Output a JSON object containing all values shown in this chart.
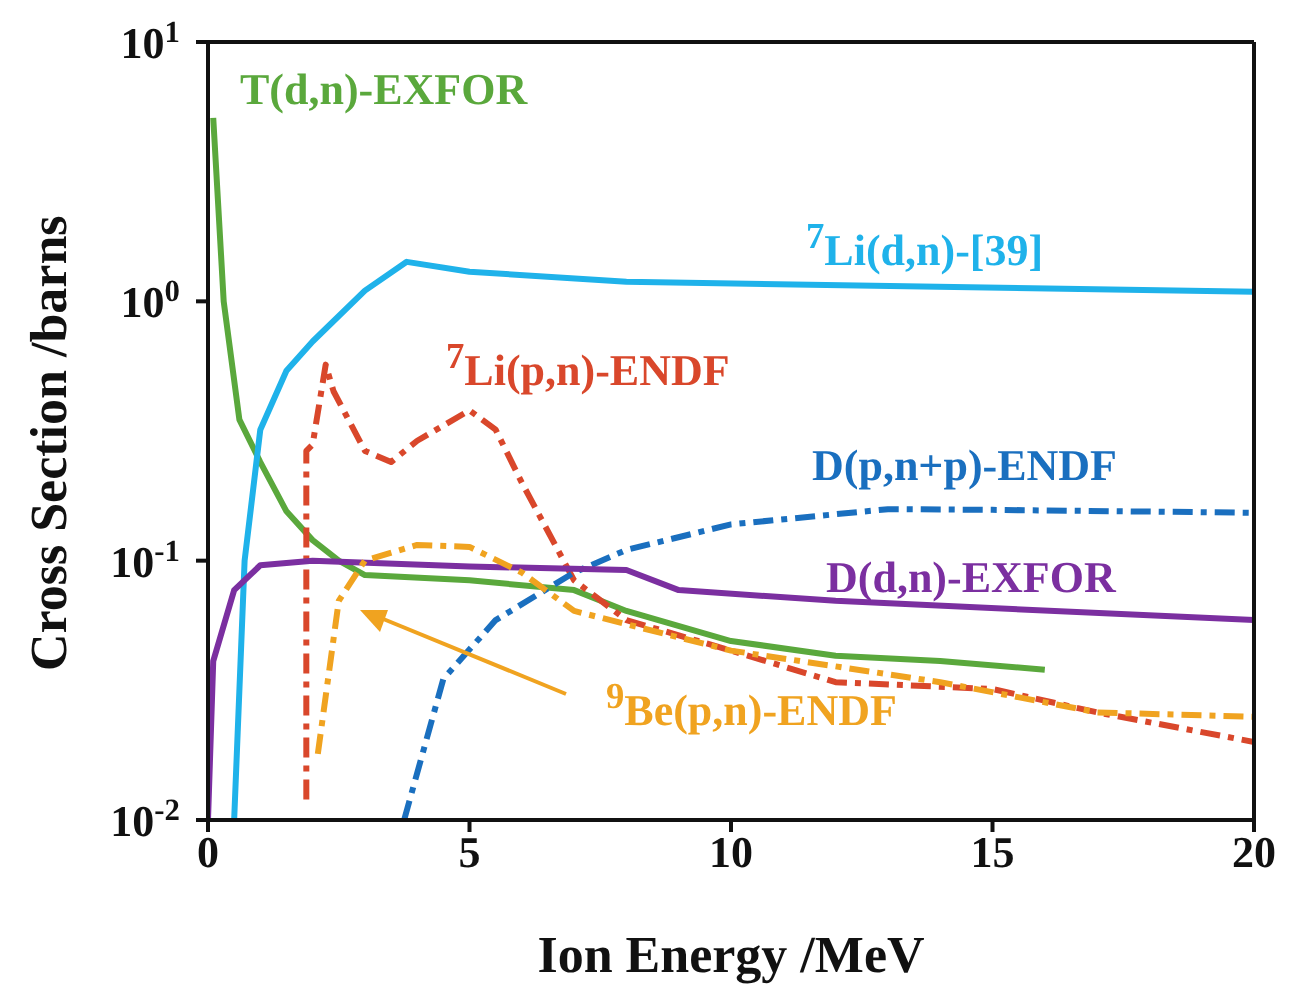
{
  "chart_data": {
    "type": "line",
    "xlabel": "Ion Energy /MeV",
    "ylabel": "Cross Section /barns",
    "log": "y",
    "xlim": [
      0,
      20
    ],
    "xticks": [
      0,
      5,
      10,
      15,
      20
    ],
    "ylim": [
      0.01,
      10
    ],
    "yticks": [
      {
        "value": 0.01,
        "label": "10$^{-2}$"
      },
      {
        "value": 0.1,
        "label": "10$^{-1}$"
      },
      {
        "value": 1,
        "label": "10$^{0}$"
      },
      {
        "value": 10,
        "label": "10$^{1}$"
      }
    ],
    "legend": false,
    "series": [
      {
        "name": "T(d,n)-EXFOR",
        "color": "#5aa83c",
        "line_style": "solid",
        "x": [
          0.1,
          0.3,
          0.6,
          1,
          1.5,
          2,
          2.5,
          3,
          5,
          7,
          8,
          10,
          12,
          14,
          16
        ],
        "values": [
          5.1,
          1.0,
          0.35,
          0.24,
          0.155,
          0.12,
          0.1,
          0.088,
          0.084,
          0.077,
          0.064,
          0.049,
          0.043,
          0.041,
          0.038
        ]
      },
      {
        "name": "$^{7}$Li(d,n)-[39]",
        "color": "#1fb2ea",
        "line_style": "solid",
        "x": [
          0.5,
          0.7,
          1,
          1.5,
          2,
          3,
          3.8,
          5,
          8,
          20
        ],
        "values": [
          0.01,
          0.1,
          0.32,
          0.54,
          0.7,
          1.1,
          1.42,
          1.3,
          1.19,
          1.09
        ]
      },
      {
        "name": "$^{7}$Li(p,n)-ENDF",
        "color": "#d9472b",
        "line_style": "dashed",
        "x": [
          1.88,
          1.88,
          2,
          2.25,
          2.4,
          3,
          3.5,
          4,
          5,
          5.5,
          6,
          7,
          8,
          10,
          12,
          15,
          17,
          20
        ],
        "values": [
          0.012,
          0.265,
          0.28,
          0.57,
          0.45,
          0.265,
          0.24,
          0.29,
          0.38,
          0.32,
          0.2,
          0.084,
          0.059,
          0.045,
          0.034,
          0.032,
          0.026,
          0.02
        ]
      },
      {
        "name": "D(p,n+p)-ENDF",
        "color": "#1a6fbf",
        "line_style": "dashed",
        "x": [
          3.75,
          4.5,
          5.5,
          7,
          8,
          10,
          13,
          15,
          20
        ],
        "values": [
          0.01,
          0.035,
          0.059,
          0.09,
          0.11,
          0.138,
          0.158,
          0.157,
          0.153
        ]
      },
      {
        "name": "D(d,n)-EXFOR",
        "color": "#7b2fa0",
        "line_style": "solid",
        "x": [
          0,
          0.1,
          0.5,
          1,
          2,
          5,
          8,
          9,
          12,
          20
        ],
        "values": [
          0.01,
          0.041,
          0.077,
          0.096,
          0.1,
          0.095,
          0.092,
          0.077,
          0.07,
          0.059
        ]
      },
      {
        "name": "$^{9}$Be(p,n)-ENDF",
        "color": "#f0a320",
        "line_style": "dashed",
        "x": [
          2.1,
          2.5,
          3,
          4,
          5,
          6,
          7,
          10,
          14,
          17,
          20
        ],
        "values": [
          0.018,
          0.07,
          0.1,
          0.115,
          0.113,
          0.09,
          0.064,
          0.045,
          0.034,
          0.026,
          0.025
        ]
      }
    ]
  }
}
